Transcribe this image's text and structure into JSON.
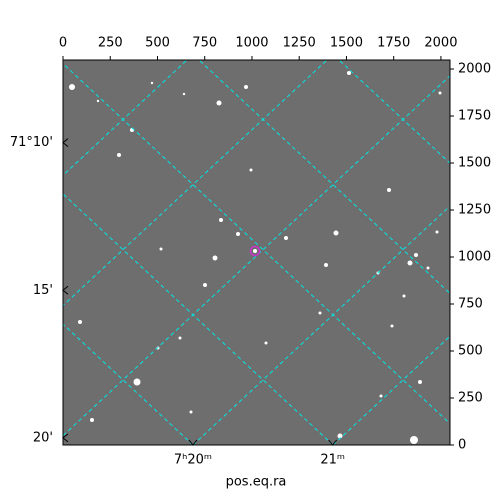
{
  "chart_data": {
    "type": "image",
    "xlabel": "pos.eq.ra",
    "xlim": [
      0,
      2048
    ],
    "xticks": [
      0,
      250,
      500,
      750,
      1000,
      1250,
      1500,
      1750,
      2000
    ],
    "ylim": [
      0,
      2048
    ],
    "yticks": [
      0,
      250,
      500,
      750,
      1000,
      1250,
      1500,
      1750,
      2000
    ],
    "ra_lim": [
      19.07,
      21.84
    ],
    "ra_ticks": [
      {
        "value": 20,
        "label": "7ʰ20ᵐ"
      },
      {
        "value": 21,
        "label": "21ᵐ"
      }
    ],
    "dec_lim": [
      20.24,
      7.2
    ],
    "dec_ticks": [
      {
        "value": 10,
        "label": "71°10'"
      },
      {
        "value": 15,
        "label": "15'"
      },
      {
        "value": 20,
        "label": "20'"
      }
    ],
    "grid": true,
    "grid_color": "#00e5e5",
    "marker_color": "#cc33cc"
  }
}
